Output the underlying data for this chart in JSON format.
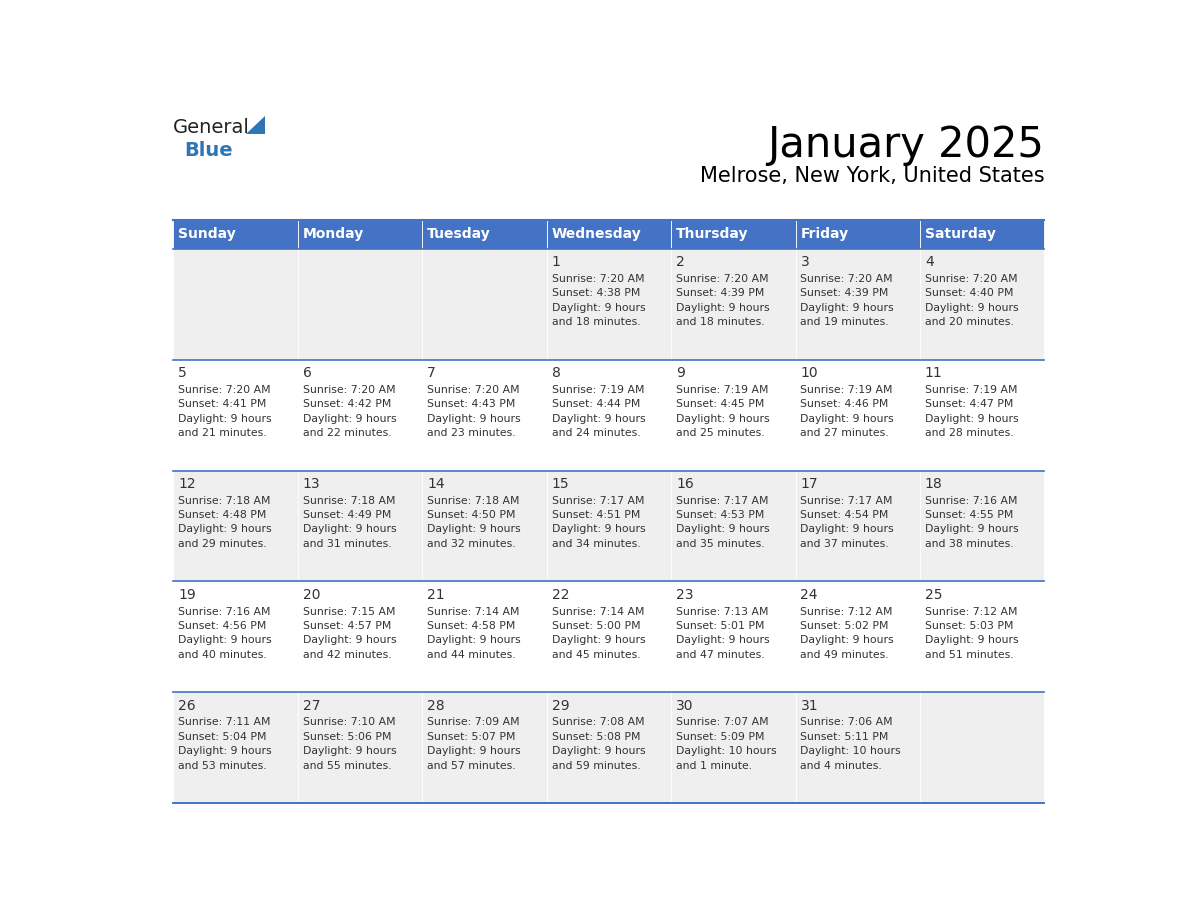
{
  "title": "January 2025",
  "subtitle": "Melrose, New York, United States",
  "header_bg": "#4472C4",
  "header_text_color": "#FFFFFF",
  "cell_bg_light": "#EFEFEF",
  "cell_bg_white": "#FFFFFF",
  "text_color": "#333333",
  "line_color": "#4472C4",
  "day_headers": [
    "Sunday",
    "Monday",
    "Tuesday",
    "Wednesday",
    "Thursday",
    "Friday",
    "Saturday"
  ],
  "weeks": [
    [
      {
        "day": "",
        "info": ""
      },
      {
        "day": "",
        "info": ""
      },
      {
        "day": "",
        "info": ""
      },
      {
        "day": "1",
        "info": "Sunrise: 7:20 AM\nSunset: 4:38 PM\nDaylight: 9 hours\nand 18 minutes."
      },
      {
        "day": "2",
        "info": "Sunrise: 7:20 AM\nSunset: 4:39 PM\nDaylight: 9 hours\nand 18 minutes."
      },
      {
        "day": "3",
        "info": "Sunrise: 7:20 AM\nSunset: 4:39 PM\nDaylight: 9 hours\nand 19 minutes."
      },
      {
        "day": "4",
        "info": "Sunrise: 7:20 AM\nSunset: 4:40 PM\nDaylight: 9 hours\nand 20 minutes."
      }
    ],
    [
      {
        "day": "5",
        "info": "Sunrise: 7:20 AM\nSunset: 4:41 PM\nDaylight: 9 hours\nand 21 minutes."
      },
      {
        "day": "6",
        "info": "Sunrise: 7:20 AM\nSunset: 4:42 PM\nDaylight: 9 hours\nand 22 minutes."
      },
      {
        "day": "7",
        "info": "Sunrise: 7:20 AM\nSunset: 4:43 PM\nDaylight: 9 hours\nand 23 minutes."
      },
      {
        "day": "8",
        "info": "Sunrise: 7:19 AM\nSunset: 4:44 PM\nDaylight: 9 hours\nand 24 minutes."
      },
      {
        "day": "9",
        "info": "Sunrise: 7:19 AM\nSunset: 4:45 PM\nDaylight: 9 hours\nand 25 minutes."
      },
      {
        "day": "10",
        "info": "Sunrise: 7:19 AM\nSunset: 4:46 PM\nDaylight: 9 hours\nand 27 minutes."
      },
      {
        "day": "11",
        "info": "Sunrise: 7:19 AM\nSunset: 4:47 PM\nDaylight: 9 hours\nand 28 minutes."
      }
    ],
    [
      {
        "day": "12",
        "info": "Sunrise: 7:18 AM\nSunset: 4:48 PM\nDaylight: 9 hours\nand 29 minutes."
      },
      {
        "day": "13",
        "info": "Sunrise: 7:18 AM\nSunset: 4:49 PM\nDaylight: 9 hours\nand 31 minutes."
      },
      {
        "day": "14",
        "info": "Sunrise: 7:18 AM\nSunset: 4:50 PM\nDaylight: 9 hours\nand 32 minutes."
      },
      {
        "day": "15",
        "info": "Sunrise: 7:17 AM\nSunset: 4:51 PM\nDaylight: 9 hours\nand 34 minutes."
      },
      {
        "day": "16",
        "info": "Sunrise: 7:17 AM\nSunset: 4:53 PM\nDaylight: 9 hours\nand 35 minutes."
      },
      {
        "day": "17",
        "info": "Sunrise: 7:17 AM\nSunset: 4:54 PM\nDaylight: 9 hours\nand 37 minutes."
      },
      {
        "day": "18",
        "info": "Sunrise: 7:16 AM\nSunset: 4:55 PM\nDaylight: 9 hours\nand 38 minutes."
      }
    ],
    [
      {
        "day": "19",
        "info": "Sunrise: 7:16 AM\nSunset: 4:56 PM\nDaylight: 9 hours\nand 40 minutes."
      },
      {
        "day": "20",
        "info": "Sunrise: 7:15 AM\nSunset: 4:57 PM\nDaylight: 9 hours\nand 42 minutes."
      },
      {
        "day": "21",
        "info": "Sunrise: 7:14 AM\nSunset: 4:58 PM\nDaylight: 9 hours\nand 44 minutes."
      },
      {
        "day": "22",
        "info": "Sunrise: 7:14 AM\nSunset: 5:00 PM\nDaylight: 9 hours\nand 45 minutes."
      },
      {
        "day": "23",
        "info": "Sunrise: 7:13 AM\nSunset: 5:01 PM\nDaylight: 9 hours\nand 47 minutes."
      },
      {
        "day": "24",
        "info": "Sunrise: 7:12 AM\nSunset: 5:02 PM\nDaylight: 9 hours\nand 49 minutes."
      },
      {
        "day": "25",
        "info": "Sunrise: 7:12 AM\nSunset: 5:03 PM\nDaylight: 9 hours\nand 51 minutes."
      }
    ],
    [
      {
        "day": "26",
        "info": "Sunrise: 7:11 AM\nSunset: 5:04 PM\nDaylight: 9 hours\nand 53 minutes."
      },
      {
        "day": "27",
        "info": "Sunrise: 7:10 AM\nSunset: 5:06 PM\nDaylight: 9 hours\nand 55 minutes."
      },
      {
        "day": "28",
        "info": "Sunrise: 7:09 AM\nSunset: 5:07 PM\nDaylight: 9 hours\nand 57 minutes."
      },
      {
        "day": "29",
        "info": "Sunrise: 7:08 AM\nSunset: 5:08 PM\nDaylight: 9 hours\nand 59 minutes."
      },
      {
        "day": "30",
        "info": "Sunrise: 7:07 AM\nSunset: 5:09 PM\nDaylight: 10 hours\nand 1 minute."
      },
      {
        "day": "31",
        "info": "Sunrise: 7:06 AM\nSunset: 5:11 PM\nDaylight: 10 hours\nand 4 minutes."
      },
      {
        "day": "",
        "info": ""
      }
    ]
  ],
  "logo_general_color": "#222222",
  "logo_blue_color": "#2E75B6",
  "logo_triangle_color": "#2E75B6",
  "fig_width": 11.88,
  "fig_height": 9.18,
  "dpi": 100
}
